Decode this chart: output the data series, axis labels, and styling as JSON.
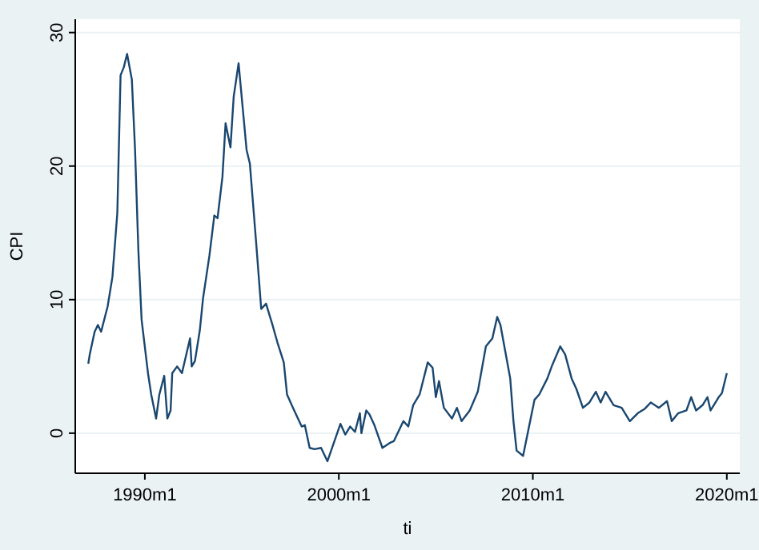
{
  "chart_data": {
    "type": "line",
    "xlabel": "ti",
    "ylabel": "CPI",
    "x": [
      "1987-02",
      "1987-03",
      "1987-06",
      "1987-08",
      "1987-10",
      "1988-02",
      "1988-05",
      "1988-08",
      "1988-10",
      "1988-12",
      "1989-02",
      "1989-05",
      "1989-07",
      "1989-09",
      "1989-11",
      "1990-03",
      "1990-05",
      "1990-08",
      "1990-10",
      "1991-01",
      "1991-03",
      "1991-05",
      "1991-06",
      "1991-09",
      "1991-12",
      "1992-05",
      "1992-06",
      "1992-08",
      "1992-11",
      "1993-01",
      "1993-05",
      "1993-08",
      "1993-10",
      "1994-01",
      "1994-03",
      "1994-06",
      "1994-08",
      "1994-11",
      "1994-12",
      "1995-04",
      "1995-06",
      "1995-10",
      "1996-01",
      "1996-04",
      "1996-08",
      "1996-11",
      "1997-03",
      "1997-05",
      "1997-09",
      "1998-02",
      "1998-04",
      "1998-07",
      "1998-10",
      "1999-02",
      "1999-06",
      "1999-10",
      "2000-02",
      "2000-05",
      "2000-08",
      "2000-11",
      "2001-02",
      "2001-03",
      "2001-06",
      "2001-08",
      "2001-11",
      "2002-04",
      "2002-09",
      "2002-11",
      "2003-05",
      "2003-08",
      "2003-11",
      "2004-03",
      "2004-08",
      "2004-11",
      "2005-01",
      "2005-03",
      "2005-06",
      "2005-11",
      "2006-02",
      "2006-05",
      "2006-10",
      "2007-03",
      "2007-08",
      "2007-12",
      "2008-03",
      "2008-05",
      "2008-08",
      "2008-11",
      "2009-01",
      "2009-03",
      "2009-07",
      "2009-10",
      "2010-02",
      "2010-05",
      "2010-10",
      "2011-01",
      "2011-06",
      "2011-09",
      "2012-01",
      "2012-04",
      "2012-08",
      "2012-12",
      "2013-04",
      "2013-07",
      "2013-10",
      "2014-03",
      "2014-08",
      "2015-01",
      "2015-06",
      "2015-10",
      "2016-02",
      "2016-07",
      "2016-12",
      "2017-03",
      "2017-07",
      "2017-12",
      "2018-03",
      "2018-06",
      "2018-10",
      "2019-01",
      "2019-03",
      "2019-08",
      "2019-10",
      "2020-01"
    ],
    "series": [
      {
        "color": "#1a476f",
        "values": [
          5.2,
          5.9,
          7.6,
          8.1,
          7.6,
          9.5,
          11.7,
          16.5,
          26.8,
          27.4,
          28.4,
          26.5,
          21.2,
          13.7,
          8.5,
          4.5,
          2.9,
          1.1,
          2.9,
          4.3,
          1.1,
          1.7,
          4.5,
          5.0,
          4.5,
          7.1,
          5.0,
          5.4,
          7.7,
          10.1,
          13.3,
          16.3,
          16.1,
          19.2,
          23.2,
          21.4,
          25.2,
          27.7,
          26.4,
          21.2,
          20.2,
          14.1,
          9.3,
          9.7,
          8.1,
          6.8,
          5.3,
          2.9,
          1.8,
          0.5,
          0.6,
          -1.1,
          -1.2,
          -1.1,
          -2.1,
          -0.7,
          0.7,
          -0.1,
          0.5,
          0.1,
          1.5,
          0.0,
          1.7,
          1.4,
          0.6,
          -1.1,
          -0.7,
          -0.6,
          0.9,
          0.5,
          2.1,
          2.9,
          5.3,
          4.9,
          2.7,
          3.9,
          1.9,
          1.1,
          1.9,
          0.9,
          1.7,
          3.1,
          6.5,
          7.1,
          8.7,
          8.1,
          6.1,
          4.1,
          0.9,
          -1.3,
          -1.7,
          0.1,
          2.5,
          2.9,
          4.1,
          5.1,
          6.5,
          5.9,
          4.1,
          3.3,
          1.9,
          2.3,
          3.1,
          2.3,
          3.1,
          2.1,
          1.9,
          0.9,
          1.5,
          1.8,
          2.3,
          1.9,
          2.4,
          0.9,
          1.5,
          1.7,
          2.7,
          1.7,
          2.1,
          2.7,
          1.7,
          2.7,
          3.0,
          4.5
        ]
      }
    ],
    "xlim": [
      "1986-06",
      "2020-09"
    ],
    "ylim": [
      -3,
      31
    ],
    "xticks": [
      {
        "value": "1990-01",
        "label": "1990m1"
      },
      {
        "value": "2000-01",
        "label": "2000m1"
      },
      {
        "value": "2010-01",
        "label": "2010m1"
      },
      {
        "value": "2020-01",
        "label": "2020m1"
      }
    ],
    "yticks": [
      0,
      10,
      20,
      30
    ],
    "grid": "y"
  }
}
